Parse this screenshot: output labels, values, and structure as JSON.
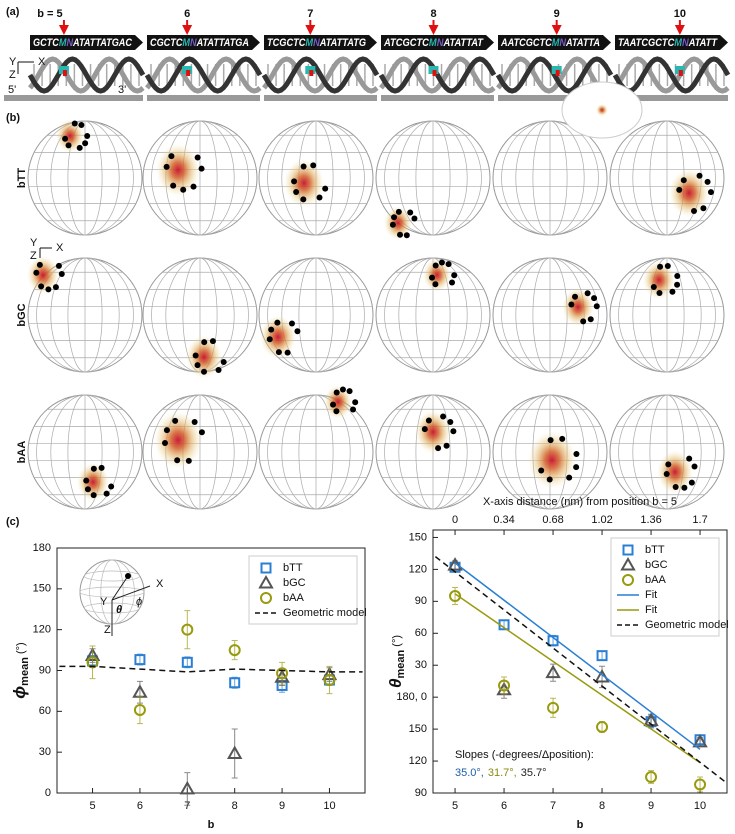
{
  "panel_labels": [
    "(a)",
    "(b)",
    "(c)"
  ],
  "panel_a": {
    "positions": [
      "b = 5",
      "6",
      "7",
      "8",
      "9",
      "10"
    ],
    "sequences": [
      {
        "left": "GCTC",
        "m": "M",
        "n": "N",
        "right": "ATATTATGAC"
      },
      {
        "left": "CGCTC",
        "m": "M",
        "n": "N",
        "right": "ATATTATGA"
      },
      {
        "left": "TCGCTC",
        "m": "M",
        "n": "N",
        "right": "ATATTATG"
      },
      {
        "left": "ATCGCTC",
        "m": "M",
        "n": "N",
        "right": "ATATTAT"
      },
      {
        "left": "AATCGCTC",
        "m": "M",
        "n": "N",
        "right": "ATATTA"
      },
      {
        "left": "TAATCGCTC",
        "m": "M",
        "n": "N",
        "right": "ATATT"
      }
    ],
    "axes": {
      "y": "Y",
      "x": "X",
      "z": "Z"
    },
    "ends": {
      "five": "5'",
      "three": "3'"
    }
  },
  "panel_b": {
    "rows": [
      "bTT",
      "bGC",
      "bAA"
    ],
    "axes": {
      "y": "Y",
      "x": "X",
      "z": "Z"
    }
  },
  "chart_data": [
    {
      "type": "scatter",
      "ylabel": {
        "symbol": "ϕ",
        "subscript": "mean",
        "unit": " (°)"
      },
      "xlabel": "b",
      "x": [
        5,
        6,
        7,
        8,
        9,
        10
      ],
      "xlim": [
        4.25,
        10.75
      ],
      "xticks": [
        5,
        6,
        7,
        8,
        9,
        10
      ],
      "ylim": [
        0,
        180
      ],
      "yticks": [
        0,
        30,
        60,
        90,
        120,
        150,
        180
      ],
      "legend": "upper right",
      "inset_labels": {
        "x": "X",
        "y": "Y",
        "z": "Z",
        "theta": "θ",
        "phi": "ϕ"
      },
      "series": [
        {
          "name": "bTT",
          "color": "#2a7fd4",
          "marker": "square",
          "values": [
            97,
            98,
            96,
            81,
            79,
            83
          ],
          "errors": [
            4,
            4,
            4,
            4,
            5,
            4
          ]
        },
        {
          "name": "bGC",
          "color": "#555555",
          "marker": "triangle",
          "values": [
            101,
            74,
            3,
            29,
            85,
            87
          ],
          "errors": [
            5,
            8,
            12,
            18,
            6,
            5
          ]
        },
        {
          "name": "bAA",
          "color": "#9a9a10",
          "marker": "circle",
          "values": [
            96,
            61,
            120,
            105,
            88,
            83
          ],
          "errors": [
            12,
            10,
            14,
            7,
            8,
            10
          ]
        },
        {
          "name": "Geometric model",
          "color": "#111111",
          "style": "dashed",
          "x": [
            4.3,
            5,
            6,
            7,
            8,
            9,
            10,
            10.7
          ],
          "values": [
            93,
            93,
            91,
            89,
            91,
            90,
            89,
            89
          ]
        }
      ]
    },
    {
      "type": "scatter",
      "ylabel": {
        "symbol": "θ",
        "subscript": "mean",
        "unit": " (°)"
      },
      "xlabel": "b",
      "x2label": "X-axis distance (nm) from position b = 5",
      "x": [
        5,
        6,
        7,
        8,
        9,
        10
      ],
      "xlim": [
        4.55,
        10.55
      ],
      "xticks": [
        5,
        6,
        7,
        8,
        9,
        10
      ],
      "x2lim": [
        -0.153,
        1.887
      ],
      "x2ticks": [
        0,
        0.34,
        0.68,
        1.02,
        1.36,
        1.7
      ],
      "ylim": [
        90,
        337
      ],
      "yticks": [
        90,
        120,
        150,
        {
          "value": 180,
          "label": "180, 0"
        },
        {
          "value": 210,
          "label": "30"
        },
        {
          "value": 240,
          "label": "60"
        },
        {
          "value": 270,
          "label": "90"
        },
        {
          "value": 300,
          "label": "120"
        },
        {
          "value": 330,
          "label": "150"
        }
      ],
      "legend": "upper right",
      "annotation": "Slopes (-degrees/Δposition):",
      "slopes": [
        {
          "text": "35.0°,",
          "color": "#1f5fa8"
        },
        {
          "text": "31.7°,",
          "color": "#8a8a10"
        },
        {
          "text": "35.7°",
          "color": "#222222"
        }
      ],
      "series": [
        {
          "name": "bTT",
          "color": "#2a7fd4",
          "marker": "square",
          "values": [
            302,
            248,
            233,
            219,
            157,
            140
          ],
          "errors": [
            4,
            4,
            5,
            4,
            6,
            4
          ]
        },
        {
          "name": "bGC",
          "color": "#555555",
          "marker": "triangle",
          "values": [
            304,
            187,
            203,
            199,
            158,
            138
          ],
          "errors": [
            4,
            8,
            8,
            10,
            6,
            4
          ]
        },
        {
          "name": "bAA",
          "color": "#9a9a10",
          "marker": "circle",
          "values": [
            275,
            191,
            170,
            152,
            105,
            98
          ],
          "errors": [
            8,
            8,
            9,
            5,
            6,
            7
          ]
        },
        {
          "name": "Fit",
          "color": "#2a7fd4",
          "style": "solid",
          "x": [
            5,
            10
          ],
          "values": [
            306,
            131
          ]
        },
        {
          "name": "Fit",
          "color": "#9a9a10",
          "style": "solid",
          "x": [
            5,
            10
          ],
          "values": [
            277,
            118.5
          ]
        },
        {
          "name": "Geometric model",
          "color": "#111111",
          "style": "dashed",
          "x": [
            4.6,
            10.5
          ],
          "values": [
            312,
            101
          ]
        }
      ]
    }
  ]
}
